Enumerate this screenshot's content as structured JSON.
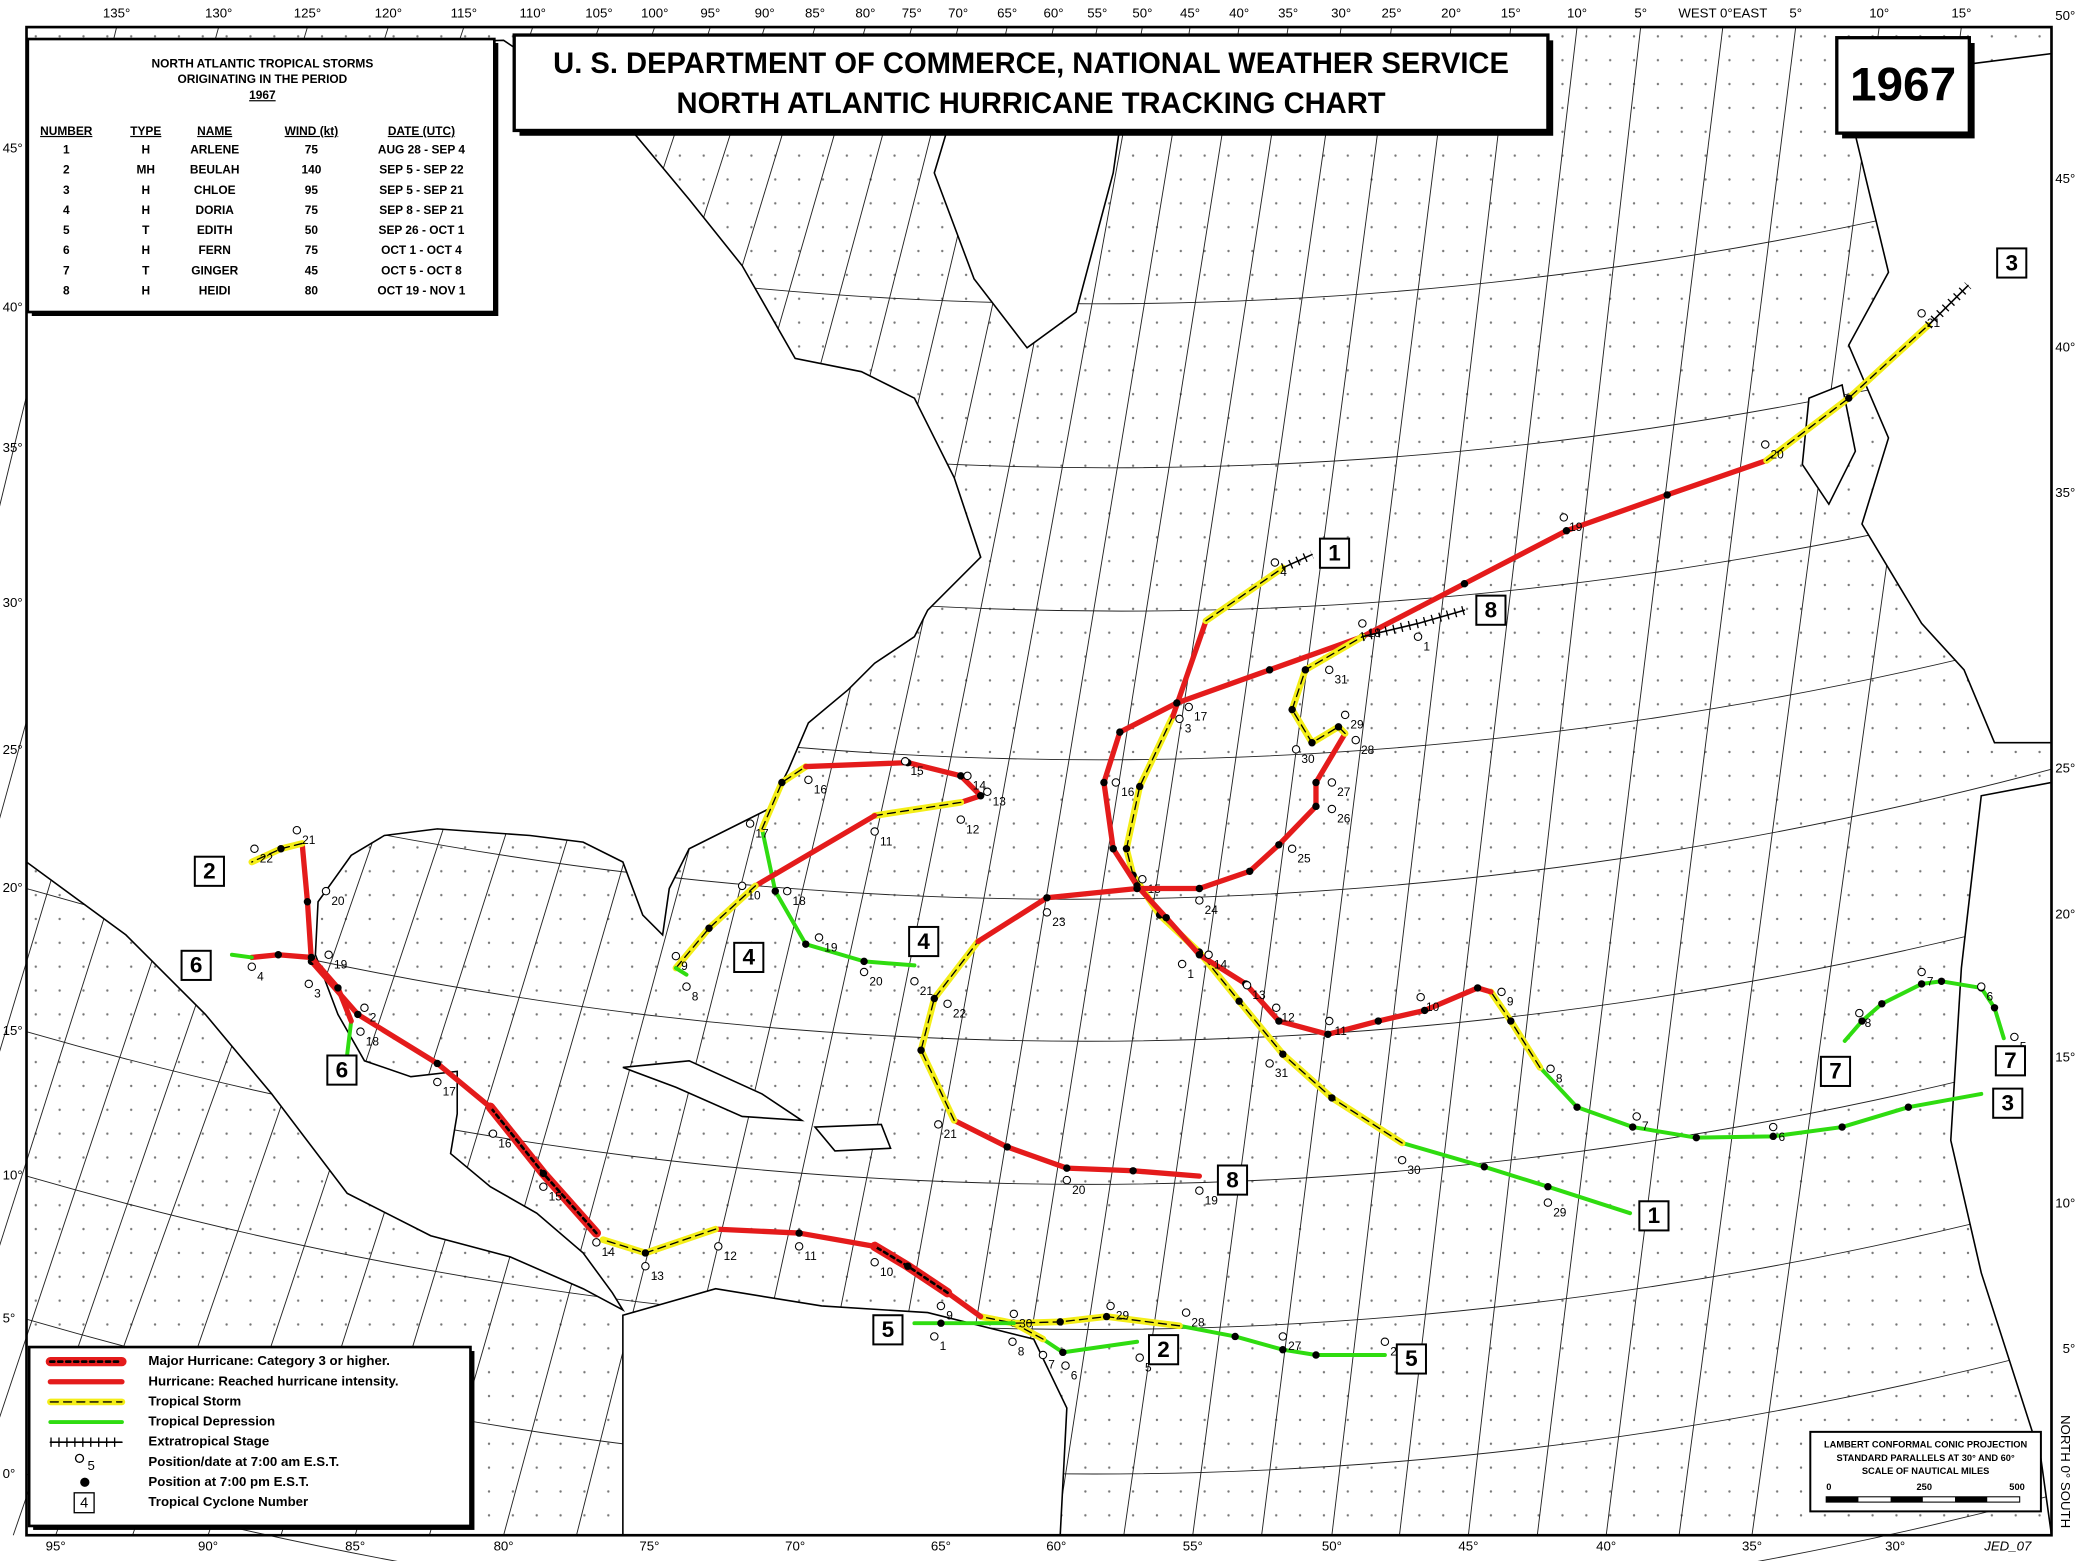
{
  "header": {
    "title_line1": "U. S. DEPARTMENT OF COMMERCE, NATIONAL WEATHER SERVICE",
    "title_line2": "NORTH ATLANTIC HURRICANE TRACKING CHART",
    "year": "1967"
  },
  "table": {
    "title": [
      "NORTH ATLANTIC TROPICAL STORMS",
      "ORIGINATING IN THE PERIOD",
      "1967"
    ],
    "columns": [
      "NUMBER",
      "TYPE",
      "NAME",
      "WIND (kt)",
      "DATE (UTC)"
    ],
    "rows": [
      [
        "1",
        "H",
        "ARLENE",
        "75",
        "AUG 28 - SEP  4"
      ],
      [
        "2",
        "MH",
        "BEULAH",
        "140",
        "SEP  5 - SEP 22"
      ],
      [
        "3",
        "H",
        "CHLOE",
        "95",
        "SEP  5 - SEP 21"
      ],
      [
        "4",
        "H",
        "DORIA",
        "75",
        "SEP  8 - SEP 21"
      ],
      [
        "5",
        "T",
        "EDITH",
        "50",
        "SEP 26 - OCT  1"
      ],
      [
        "6",
        "H",
        "FERN",
        "75",
        "OCT  1 - OCT  4"
      ],
      [
        "7",
        "T",
        "GINGER",
        "45",
        "OCT  5 - OCT  8"
      ],
      [
        "8",
        "H",
        "HEIDI",
        "80",
        "OCT 19 - NOV  1"
      ]
    ]
  },
  "legend": {
    "items": [
      "Major Hurricane: Category 3 or higher.",
      "Hurricane: Reached hurricane intensity.",
      "Tropical Storm",
      "Tropical Depression",
      "Extratropical Stage",
      "Position/date at 7:00 am E.S.T.",
      "Position at 7:00 pm E.S.T.",
      "Tropical Cyclone Number"
    ],
    "sample_date": "5",
    "sample_number": "4"
  },
  "projection": {
    "lines": [
      "LAMBERT CONFORMAL CONIC PROJECTION",
      "STANDARD PARALLELS AT 30° AND 60°",
      "SCALE OF NAUTICAL MILES"
    ],
    "scale": [
      "0",
      "250",
      "500"
    ]
  },
  "top_labels": [
    "135°",
    "130°",
    "125°",
    "120°",
    "115°",
    "110°",
    "105°",
    "100°",
    "95°",
    "90°",
    "85°",
    "80°",
    "75°",
    "70°",
    "65°",
    "60°",
    "55°",
    "50°",
    "45°",
    "40°",
    "35°",
    "30°",
    "25°",
    "20°",
    "15°",
    "10°",
    "5°",
    "WEST 0°EAST",
    "5°",
    "10°",
    "15°"
  ],
  "bottom_labels": [
    "95°",
    "90°",
    "85°",
    "80°",
    "75°",
    "70°",
    "65°",
    "60°",
    "55°",
    "50°",
    "45°",
    "40°",
    "35°",
    "30°"
  ],
  "left_labels": [
    "45°",
    "40°",
    "35°",
    "30°",
    "25°",
    "20°",
    "15°",
    "10°",
    "5°",
    "0°"
  ],
  "right_labels": [
    "50°",
    "45°",
    "40°",
    "35°",
    "25°",
    "20°",
    "15°",
    "10°",
    "5°"
  ],
  "side_text": "NORTH 0° SOUTH",
  "credit": "JED_07",
  "tracks": [
    {
      "number": "1",
      "dates": [
        "29",
        "30",
        "31",
        "1",
        "3",
        "4"
      ]
    },
    {
      "number": "2",
      "dates": [
        "5",
        "6",
        "7",
        "8",
        "9",
        "10",
        "11",
        "12",
        "13",
        "14",
        "15",
        "16",
        "17",
        "18",
        "19",
        "20",
        "21",
        "22"
      ]
    },
    {
      "number": "3",
      "dates": [
        "6",
        "7",
        "8",
        "9",
        "10",
        "11",
        "12",
        "13",
        "14",
        "15",
        "16",
        "17",
        "18",
        "19",
        "20",
        "21"
      ]
    },
    {
      "number": "4",
      "dates": [
        "8",
        "9",
        "10",
        "11",
        "12",
        "13",
        "14",
        "15",
        "16",
        "17",
        "18",
        "19",
        "20",
        "21"
      ]
    },
    {
      "number": "5",
      "dates": [
        "26",
        "27",
        "28",
        "29",
        "30",
        "1"
      ]
    },
    {
      "number": "6",
      "dates": [
        "2",
        "3",
        "4"
      ]
    },
    {
      "number": "7",
      "dates": [
        "5",
        "6",
        "7",
        "8"
      ]
    },
    {
      "number": "8",
      "dates": [
        "19",
        "20",
        "21",
        "22",
        "23",
        "24",
        "25",
        "26",
        "27",
        "28",
        "29",
        "30",
        "31",
        "1"
      ]
    }
  ]
}
